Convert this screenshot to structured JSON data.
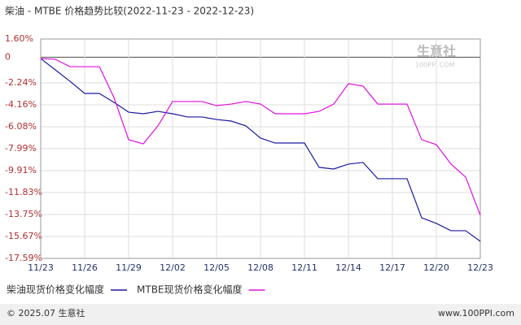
{
  "chart_data": {
    "type": "line",
    "title": "柴油 - MTBE 价格趋势比较(2022-11-23 - 2022-12-23)",
    "categories": [
      "11/23",
      null,
      null,
      "11/26",
      null,
      null,
      "11/29",
      null,
      null,
      "12/02",
      null,
      null,
      "12/05",
      null,
      null,
      "12/08",
      null,
      null,
      "12/11",
      null,
      null,
      "12/14",
      null,
      null,
      "12/17",
      null,
      null,
      "12/20",
      null,
      null,
      "12/23"
    ],
    "series": [
      {
        "name": "柴油现货价格变化幅度",
        "color": "#1a1aa0",
        "values": [
          -0.11,
          -1.1,
          -2.1,
          -3.16,
          -3.16,
          -3.94,
          -4.8,
          -4.94,
          -4.73,
          -4.94,
          -5.22,
          -5.22,
          -5.44,
          -5.58,
          -6.0,
          -7.07,
          -7.5,
          -7.5,
          -7.5,
          -9.63,
          -9.77,
          -9.34,
          -9.2,
          -10.62,
          -10.62,
          -10.62,
          -14.04,
          -14.53,
          -15.17,
          -15.17,
          -16.1
        ]
      },
      {
        "name": "MTBE现货价格变化幅度",
        "color": "#e010e0",
        "values": [
          -0.11,
          -0.18,
          -0.82,
          -0.82,
          -0.82,
          -3.52,
          -7.21,
          -7.57,
          -6.0,
          -3.87,
          -3.87,
          -3.87,
          -4.23,
          -4.09,
          -3.87,
          -4.09,
          -4.94,
          -4.94,
          -4.94,
          -4.73,
          -4.09,
          -2.31,
          -2.52,
          -4.09,
          -4.09,
          -4.09,
          -7.21,
          -7.64,
          -9.34,
          -10.48,
          -13.82
        ]
      }
    ],
    "ylim": [
      -17.59,
      1.6
    ],
    "yticks": [
      {
        "value": 1.6,
        "label": "1.60%"
      },
      0,
      {
        "value": -2.24,
        "label": "-2.24%"
      },
      {
        "value": -4.16,
        "label": "-4.16%"
      },
      {
        "value": -6.08,
        "label": "-6.08%"
      },
      {
        "value": -7.99,
        "label": "-7.99%"
      },
      {
        "value": -9.91,
        "label": "-9.91%"
      },
      {
        "value": -11.83,
        "label": "-11.83%"
      },
      {
        "value": -13.75,
        "label": "-13.75%"
      },
      {
        "value": -15.67,
        "label": "-15.67%"
      },
      {
        "value": -17.59,
        "label": "-17.59%"
      }
    ],
    "grid": true,
    "watermark": "生意社",
    "watermark_sub": "100PPI.COM",
    "footer_left": "© 2025.07 生意社",
    "footer_right": "www.100PPI.com"
  }
}
